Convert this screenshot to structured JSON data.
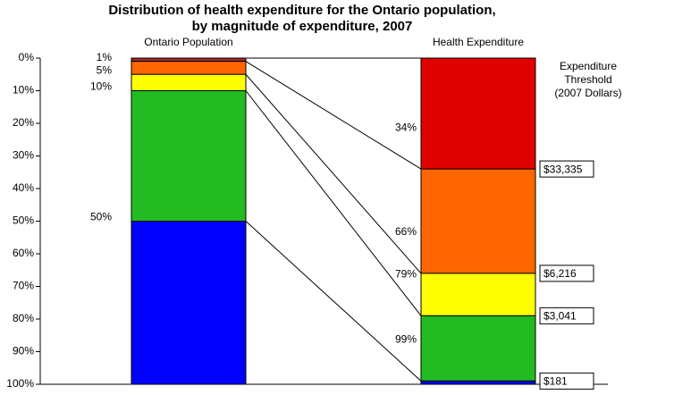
{
  "chart_data": {
    "type": "stacked_bar",
    "title": [
      "Distribution of health expenditure for the Ontario population,",
      "by magnitude of expenditure, 2007"
    ],
    "categories": [
      "Ontario Population",
      "Health Expenditure"
    ],
    "ylim": [
      0,
      100
    ],
    "inverted": true,
    "yticks": [
      {
        "value": 0,
        "label": "0%"
      },
      {
        "value": 10,
        "label": "10%"
      },
      {
        "value": 20,
        "label": "20%"
      },
      {
        "value": 30,
        "label": "30%"
      },
      {
        "value": 40,
        "label": "40%"
      },
      {
        "value": 50,
        "label": "50%"
      },
      {
        "value": 60,
        "label": "60%"
      },
      {
        "value": 70,
        "label": "70%"
      },
      {
        "value": 80,
        "label": "80%"
      },
      {
        "value": 90,
        "label": "90%"
      },
      {
        "value": 100,
        "label": "100%"
      }
    ],
    "series": [
      {
        "colors": [
          "#9b2a2a",
          "#e00000"
        ],
        "values": [
          1,
          34
        ]
      },
      {
        "colors": [
          "#ff6600",
          "#ff6600"
        ],
        "values": [
          4,
          32
        ]
      },
      {
        "colors": [
          "#ffff00",
          "#ffff00"
        ],
        "values": [
          5,
          13
        ]
      },
      {
        "colors": [
          "#22bb22",
          "#22bb22"
        ],
        "values": [
          40,
          20
        ]
      },
      {
        "colors": [
          "#0000ff",
          "#0000ff"
        ],
        "values": [
          50,
          1
        ]
      }
    ],
    "cumulative_labels": [
      [
        {
          "value": 1,
          "label": "1%"
        },
        {
          "value": 5,
          "label": "5%"
        },
        {
          "value": 10,
          "label": "10%"
        },
        {
          "value": 50,
          "label": "50%"
        }
      ],
      [
        {
          "value": 34,
          "label": "34%"
        },
        {
          "value": 66,
          "label": "66%"
        },
        {
          "value": 79,
          "label": "79%"
        },
        {
          "value": 99,
          "label": "99%"
        }
      ]
    ],
    "threshold_title": [
      "Expenditure",
      "Threshold",
      "(2007 Dollars)"
    ],
    "thresholds": [
      {
        "value": 34,
        "label": "$33,335"
      },
      {
        "value": 66,
        "label": "$6,216"
      },
      {
        "value": 79,
        "label": "$3,041"
      },
      {
        "value": 99,
        "label": "$181"
      }
    ]
  }
}
